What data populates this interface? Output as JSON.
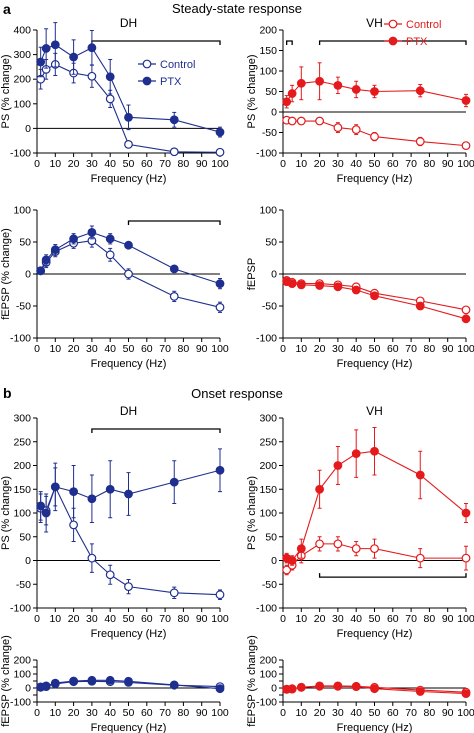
{
  "colors": {
    "dh": "#1f2f8f",
    "vh": "#e41a1c"
  },
  "figure": {
    "panel_a": "a",
    "panel_b": "b",
    "section_a_title": "Steady-state response",
    "section_b_title": "Onset response"
  },
  "chart_data": [
    {
      "type": "line",
      "title": "DH",
      "xlabel": "Frequency (Hz)",
      "ylabel": "PS (% change)",
      "xlim": [
        0,
        100
      ],
      "ylim": [
        -100,
        400
      ],
      "xticks": [
        "0",
        "10",
        "20",
        "30",
        "40",
        "50",
        "60",
        "70",
        "80",
        "90",
        "100"
      ],
      "yticks": [
        "-100",
        "0",
        "100",
        "200",
        "300",
        "400"
      ],
      "x": [
        2,
        5,
        10,
        20,
        30,
        40,
        50,
        75,
        100
      ],
      "series": [
        {
          "name": "Control",
          "values": [
            200,
            240,
            260,
            225,
            212,
            120,
            -65,
            -95,
            -97
          ],
          "errors": [
            40,
            40,
            45,
            40,
            45,
            35,
            8,
            5,
            5
          ],
          "marker": "open"
        },
        {
          "name": "PTX",
          "values": [
            270,
            325,
            340,
            290,
            328,
            210,
            45,
            35,
            -15
          ],
          "errors": [
            60,
            80,
            90,
            70,
            70,
            70,
            50,
            30,
            20
          ],
          "marker": "filled"
        }
      ],
      "bracket": [
        30,
        100
      ],
      "legend": {
        "position": "right",
        "entries": [
          "Control",
          "PTX"
        ]
      }
    },
    {
      "type": "line",
      "title": "VH",
      "xlabel": "Frequency (Hz)",
      "ylabel": "PS (% change)",
      "xlim": [
        0,
        100
      ],
      "ylim": [
        -100,
        200
      ],
      "xticks": [
        "0",
        "10",
        "20",
        "30",
        "40",
        "50",
        "60",
        "70",
        "80",
        "90",
        "100"
      ],
      "yticks": [
        "-100",
        "-50",
        "0",
        "50",
        "100",
        "150",
        "200"
      ],
      "x": [
        2,
        5,
        10,
        20,
        30,
        40,
        50,
        75,
        100
      ],
      "series": [
        {
          "name": "Control",
          "values": [
            -20,
            -22,
            -22,
            -22,
            -38,
            -43,
            -60,
            -72,
            -82
          ],
          "errors": [
            5,
            5,
            6,
            8,
            12,
            12,
            10,
            10,
            8
          ],
          "marker": "open"
        },
        {
          "name": "PTX",
          "values": [
            25,
            45,
            70,
            75,
            65,
            55,
            50,
            52,
            28
          ],
          "errors": [
            15,
            20,
            40,
            45,
            20,
            20,
            15,
            15,
            15
          ],
          "marker": "filled"
        }
      ],
      "brackets": [
        [
          2,
          5
        ],
        [
          20,
          100
        ]
      ],
      "legend": {
        "position": "top-right",
        "entries": [
          "Control",
          "PTX"
        ]
      }
    },
    {
      "type": "line",
      "title": "",
      "xlabel": "Frequency (Hz)",
      "ylabel": "fEPSP (% change)",
      "xlim": [
        0,
        100
      ],
      "ylim": [
        -100,
        100
      ],
      "xticks": [
        "0",
        "10",
        "20",
        "30",
        "40",
        "50",
        "60",
        "70",
        "80",
        "90",
        "100"
      ],
      "yticks": [
        "-100",
        "-50",
        "0",
        "50",
        "100"
      ],
      "x": [
        2,
        5,
        10,
        20,
        30,
        40,
        50,
        75,
        100
      ],
      "series": [
        {
          "name": "Control",
          "values": [
            5,
            18,
            35,
            48,
            52,
            30,
            0,
            -35,
            -52
          ],
          "errors": [
            5,
            8,
            8,
            8,
            10,
            10,
            8,
            8,
            8
          ],
          "marker": "open"
        },
        {
          "name": "PTX",
          "values": [
            5,
            22,
            38,
            55,
            65,
            55,
            45,
            8,
            -15
          ],
          "errors": [
            5,
            8,
            8,
            8,
            10,
            8,
            5,
            5,
            8
          ],
          "marker": "filled"
        }
      ],
      "bracket": [
        50,
        100
      ]
    },
    {
      "type": "line",
      "title": "",
      "xlabel": "Frequency (Hz)",
      "ylabel": "fEPSP",
      "xlim": [
        0,
        100
      ],
      "ylim": [
        -100,
        100
      ],
      "xticks": [
        "0",
        "10",
        "20",
        "30",
        "40",
        "50",
        "60",
        "70",
        "80",
        "90",
        "100"
      ],
      "yticks": [
        "-100",
        "-50",
        "0",
        "50",
        "100"
      ],
      "x": [
        2,
        5,
        10,
        20,
        30,
        40,
        50,
        75,
        100
      ],
      "series": [
        {
          "name": "Control",
          "values": [
            -10,
            -13,
            -15,
            -15,
            -17,
            -20,
            -30,
            -42,
            -56
          ],
          "errors": [
            3,
            3,
            4,
            4,
            4,
            5,
            5,
            5,
            5
          ],
          "marker": "open"
        },
        {
          "name": "PTX",
          "values": [
            -12,
            -15,
            -17,
            -18,
            -20,
            -25,
            -34,
            -50,
            -70
          ],
          "errors": [
            3,
            3,
            4,
            4,
            4,
            5,
            5,
            5,
            5
          ],
          "marker": "filled"
        }
      ]
    },
    {
      "type": "line",
      "title": "DH",
      "xlabel": "Frequency (Hz)",
      "ylabel": "PS (% change)",
      "xlim": [
        0,
        100
      ],
      "ylim": [
        -100,
        300
      ],
      "xticks": [
        "0",
        "10",
        "20",
        "30",
        "40",
        "50",
        "60",
        "70",
        "80",
        "90",
        "100"
      ],
      "yticks": [
        "-100",
        "-50",
        "0",
        "50",
        "100",
        "150",
        "200",
        "250",
        "300"
      ],
      "x": [
        2,
        5,
        10,
        20,
        30,
        40,
        50,
        75,
        100
      ],
      "series": [
        {
          "name": "Control",
          "values": [
            110,
            105,
            155,
            75,
            5,
            -30,
            -55,
            -68,
            -72
          ],
          "errors": [
            30,
            30,
            40,
            35,
            30,
            20,
            15,
            12,
            10
          ],
          "marker": "open"
        },
        {
          "name": "PTX",
          "values": [
            115,
            100,
            155,
            145,
            130,
            150,
            140,
            165,
            190
          ],
          "errors": [
            30,
            40,
            50,
            55,
            50,
            60,
            45,
            45,
            45
          ],
          "marker": "filled"
        }
      ],
      "bracket": [
        30,
        100
      ]
    },
    {
      "type": "line",
      "title": "VH",
      "xlabel": "Frequency (Hz)",
      "ylabel": "PS (% change)",
      "xlim": [
        0,
        100
      ],
      "ylim": [
        -100,
        300
      ],
      "xticks": [
        "0",
        "10",
        "20",
        "30",
        "40",
        "50",
        "60",
        "70",
        "80",
        "90",
        "100"
      ],
      "yticks": [
        "-100",
        "-50",
        "0",
        "50",
        "100",
        "150",
        "200",
        "250",
        "300"
      ],
      "x": [
        2,
        5,
        10,
        20,
        30,
        40,
        50,
        75,
        100
      ],
      "series": [
        {
          "name": "Control",
          "values": [
            -20,
            -10,
            10,
            35,
            35,
            25,
            25,
            5,
            5
          ],
          "errors": [
            10,
            10,
            15,
            15,
            15,
            15,
            20,
            20,
            25
          ],
          "marker": "open"
        },
        {
          "name": "PTX",
          "values": [
            5,
            0,
            25,
            150,
            200,
            225,
            230,
            180,
            100
          ],
          "errors": [
            10,
            10,
            20,
            40,
            40,
            50,
            50,
            50,
            20
          ],
          "marker": "filled"
        }
      ],
      "bracket": [
        20,
        100
      ],
      "bracket_side": "below"
    },
    {
      "type": "line",
      "title": "",
      "xlabel": "Frequency (Hz)",
      "ylabel": "fEPSP (% change)",
      "xlim": [
        0,
        100
      ],
      "ylim": [
        -100,
        200
      ],
      "xticks": [
        "0",
        "10",
        "20",
        "30",
        "40",
        "50",
        "60",
        "70",
        "80",
        "90",
        "100"
      ],
      "yticks": [
        "-100",
        "-50",
        "0",
        "50",
        "100",
        "150",
        "200"
      ],
      "x": [
        2,
        5,
        10,
        20,
        30,
        40,
        50,
        75,
        100
      ],
      "series": [
        {
          "name": "Control",
          "values": [
            5,
            10,
            30,
            45,
            48,
            45,
            40,
            20,
            10
          ],
          "errors": [
            5,
            5,
            8,
            8,
            8,
            8,
            8,
            8,
            8
          ],
          "marker": "open"
        },
        {
          "name": "PTX",
          "values": [
            8,
            15,
            35,
            50,
            55,
            55,
            48,
            22,
            -5
          ],
          "errors": [
            5,
            5,
            8,
            8,
            8,
            8,
            8,
            8,
            8
          ],
          "marker": "filled"
        }
      ]
    },
    {
      "type": "line",
      "title": "",
      "xlabel": "Frequency (Hz)",
      "ylabel": "fEPSP (% change)",
      "xlim": [
        0,
        100
      ],
      "ylim": [
        -100,
        200
      ],
      "xticks": [
        "0",
        "10",
        "20",
        "30",
        "40",
        "50",
        "60",
        "70",
        "80",
        "90",
        "100"
      ],
      "yticks": [
        "-100",
        "-50",
        "0",
        "50",
        "100",
        "150",
        "200"
      ],
      "x": [
        2,
        5,
        10,
        20,
        30,
        40,
        50,
        75,
        100
      ],
      "series": [
        {
          "name": "Control",
          "values": [
            -8,
            -5,
            5,
            15,
            15,
            12,
            5,
            -15,
            -30
          ],
          "errors": [
            3,
            3,
            4,
            5,
            5,
            5,
            5,
            5,
            5
          ],
          "marker": "open"
        },
        {
          "name": "PTX",
          "values": [
            -10,
            -8,
            5,
            12,
            12,
            10,
            -5,
            -25,
            -40
          ],
          "errors": [
            3,
            3,
            4,
            5,
            5,
            5,
            5,
            5,
            5
          ],
          "marker": "filled"
        }
      ]
    }
  ]
}
